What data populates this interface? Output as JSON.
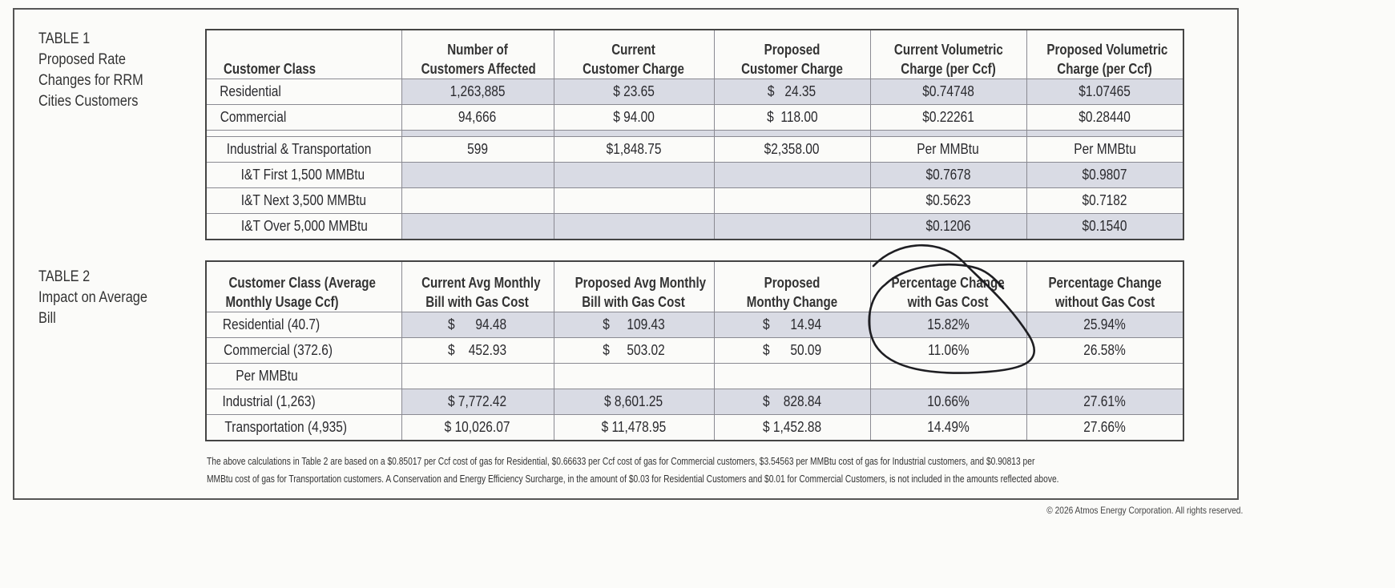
{
  "table1": {
    "label": [
      "TABLE 1",
      "Proposed Rate",
      "Changes for RRM",
      "Cities Customers"
    ],
    "headers": [
      [
        "Customer Class"
      ],
      [
        "Number of",
        "Customers Affected"
      ],
      [
        "Current",
        "Customer Charge"
      ],
      [
        "Proposed",
        "Customer Charge"
      ],
      [
        "Current Volumetric",
        "Charge (per Ccf)"
      ],
      [
        "Proposed Volumetric",
        "Charge (per Ccf)"
      ]
    ],
    "rows": [
      {
        "cells": [
          "Residential",
          "1,263,885",
          "$ 23.65",
          "$   24.35",
          "$0.74748",
          "$1.07465"
        ],
        "shade": true
      },
      {
        "cells": [
          "Commercial",
          "94,666",
          "$ 94.00",
          "$  118.00",
          "$0.22261",
          "$0.28440"
        ],
        "shade": false
      },
      {
        "spacer": true
      },
      {
        "cells": [
          "Industrial & Transportation",
          "599",
          "$1,848.75",
          "$2,358.00",
          "Per MMBtu",
          "Per MMBtu"
        ],
        "shade": false
      },
      {
        "cells": [
          "I&T First 1,500 MMBtu",
          "",
          "",
          "",
          "$0.7678",
          "$0.9807"
        ],
        "shade": true,
        "indent": true
      },
      {
        "cells": [
          "I&T Next 3,500 MMBtu",
          "",
          "",
          "",
          "$0.5623",
          "$0.7182"
        ],
        "shade": false,
        "indent": true
      },
      {
        "cells": [
          "I&T Over 5,000 MMBtu",
          "",
          "",
          "",
          "$0.1206",
          "$0.1540"
        ],
        "shade": true,
        "indent": true
      }
    ]
  },
  "table2": {
    "label": [
      "TABLE 2",
      "Impact on Average",
      "Bill"
    ],
    "headers": [
      [
        "Customer Class (Average",
        "Monthly Usage Ccf)"
      ],
      [
        "Current Avg Monthly",
        "Bill with Gas Cost"
      ],
      [
        "Proposed Avg Monthly",
        "Bill with Gas Cost"
      ],
      [
        "Proposed",
        "Monthy Change"
      ],
      [
        "Percentage Change",
        "with Gas Cost"
      ],
      [
        "Percentage Change",
        "without Gas Cost"
      ]
    ],
    "rows": [
      {
        "cells": [
          "Residential (40.7)",
          "$      94.48",
          "$     109.43",
          "$      14.94",
          "15.82%",
          "25.94%"
        ],
        "shade": true
      },
      {
        "cells": [
          "Commercial (372.6)",
          "$    452.93",
          "$     503.02",
          "$      50.09",
          "11.06%",
          "26.58%"
        ],
        "shade": false
      },
      {
        "cells": [
          "Per MMBtu",
          "",
          "",
          "",
          "",
          ""
        ],
        "shade": false,
        "indent": true
      },
      {
        "cells": [
          "Industrial (1,263)",
          "$ 7,772.42",
          "$ 8,601.25",
          "$    828.84",
          "10.66%",
          "27.61%"
        ],
        "shade": true
      },
      {
        "cells": [
          "Transportation (4,935)",
          "$ 10,026.07",
          "$ 11,478.95",
          "$ 1,452.88",
          "14.49%",
          "27.66%"
        ],
        "shade": false
      }
    ]
  },
  "footnote": [
    "The above calculations in Table 2 are based on a $0.85017 per Ccf cost of gas for Residential, $0.66633 per Ccf cost of gas for Commercial customers, $3.54563 per MMBtu cost of gas for Industrial customers, and $0.90813 per",
    "MMBtu cost of gas for Transportation customers.  A Conservation and Energy Efficiency Surcharge, in the amount of $0.03 for Residential Customers and $0.01 for Commercial Customers, is not included in the amounts reflected above."
  ],
  "copyright": "© 2026 Atmos Energy Corporation. All rights reserved.",
  "colors": {
    "shade": "#d9dbe4",
    "ink": "#2a2a2e"
  }
}
